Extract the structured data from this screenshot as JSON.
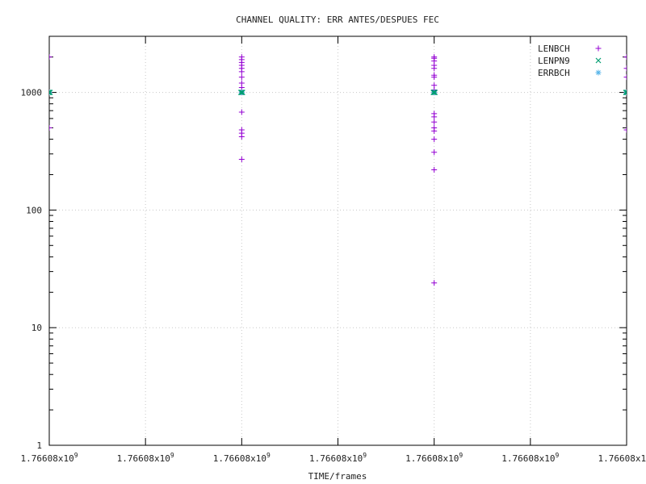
{
  "chart_data": {
    "type": "scatter",
    "title": "CHANNEL QUALITY: ERR ANTES/DESPUES FEC",
    "xlabel": "TIME/frames",
    "ylabel": "",
    "yscale": "log",
    "ylim": [
      1,
      3000
    ],
    "y_ticks": [
      {
        "value": 1,
        "label": "1"
      },
      {
        "value": 10,
        "label": "10"
      },
      {
        "value": 100,
        "label": "100"
      },
      {
        "value": 1000,
        "label": "1000"
      }
    ],
    "x_tick_label": "1.76608x10",
    "x_tick_exp": "9",
    "x_tick_count": 7,
    "grid": true,
    "legend_position": "top-right",
    "series": [
      {
        "name": "LENBCH",
        "marker": "plus",
        "color": "#9400d3",
        "groups": [
          {
            "x_tick": 0,
            "values": [
              2000,
              1000,
              500
            ]
          },
          {
            "x_tick": 2,
            "values": [
              2000,
              1900,
              1800,
              1700,
              1600,
              1500,
              1350,
              1200,
              1100,
              1000,
              680,
              480,
              450,
              420,
              270
            ]
          },
          {
            "x_tick": 4,
            "values": [
              2000,
              1950,
              1850,
              1700,
              1600,
              1400,
              1350,
              1150,
              1050,
              1000,
              660,
              620,
              560,
              500,
              470,
              400,
              310,
              220,
              24
            ]
          },
          {
            "x_tick": 6,
            "values": [
              2000,
              1600,
              1350,
              1000,
              480
            ]
          }
        ]
      },
      {
        "name": "LENPN9",
        "marker": "cross",
        "color": "#009e73",
        "groups": [
          {
            "x_tick": 0,
            "values": [
              1000
            ]
          },
          {
            "x_tick": 2,
            "values": [
              1000
            ]
          },
          {
            "x_tick": 4,
            "values": [
              1000
            ]
          },
          {
            "x_tick": 6,
            "values": [
              1000
            ]
          }
        ]
      },
      {
        "name": "ERRBCH",
        "marker": "star",
        "color": "#56b4e9",
        "groups": [
          {
            "x_tick": 0,
            "values": [
              1000
            ]
          },
          {
            "x_tick": 2,
            "values": [
              1000
            ]
          },
          {
            "x_tick": 4,
            "values": [
              1000
            ]
          },
          {
            "x_tick": 6,
            "values": [
              1000
            ]
          }
        ]
      }
    ]
  }
}
